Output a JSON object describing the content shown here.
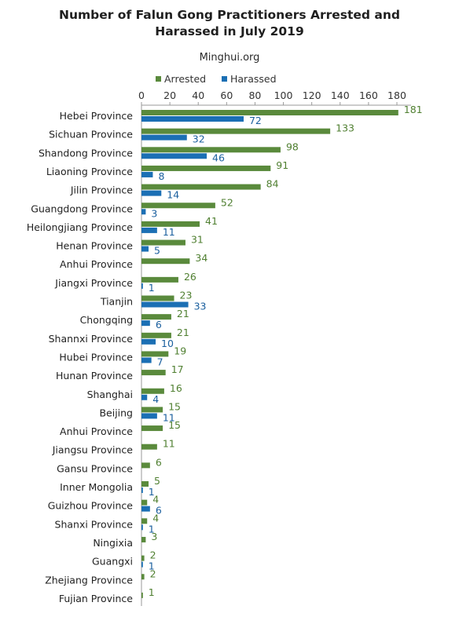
{
  "colors": {
    "arrested": "#5a8a3c",
    "harassed": "#1b6fb4",
    "arrested_label": "#4f7f30",
    "harassed_label": "#1a5f9e",
    "axis": "#9a9a9a"
  },
  "chart_data": {
    "type": "bar",
    "orientation": "horizontal",
    "title": "Number of Falun Gong Practitioners Arrested and Harassed in July 2019",
    "title_lines": [
      "Number of Falun Gong Practitioners Arrested and",
      "Harassed in July 2019"
    ],
    "subtitle": "Minghui.org",
    "xlim": [
      0,
      190
    ],
    "xticks": [
      0,
      20,
      40,
      60,
      80,
      100,
      120,
      140,
      160,
      180
    ],
    "x_axis_position": "top",
    "grid": false,
    "legend_position": "top",
    "categories": [
      "Hebei Province",
      "Sichuan Province",
      "Shandong Province",
      "Liaoning Province",
      "Jilin Province",
      "Guangdong Province",
      "Heilongjiang Province",
      "Henan Province",
      "Anhui Province",
      "Jiangxi Province",
      "Tianjin",
      "Chongqing",
      "Shannxi Province",
      "Hubei Province",
      "Hunan Province",
      "Shanghai",
      "Beijing",
      "Anhui Province",
      "Jiangsu Province",
      "Gansu Province",
      "Inner Mongolia",
      "Guizhou Province",
      "Shanxi Province",
      "Ningixia",
      "Guangxi",
      "Zhejiang Province",
      "Fujian Province"
    ],
    "series": [
      {
        "name": "Arrested",
        "values": [
          181,
          133,
          98,
          91,
          84,
          52,
          41,
          31,
          34,
          26,
          23,
          21,
          21,
          19,
          17,
          16,
          15,
          15,
          11,
          6,
          5,
          4,
          4,
          3,
          2,
          2,
          1
        ]
      },
      {
        "name": "Harassed",
        "values": [
          72,
          32,
          46,
          8,
          14,
          3,
          11,
          5,
          null,
          1,
          33,
          6,
          10,
          7,
          null,
          4,
          11,
          null,
          null,
          null,
          1,
          6,
          1,
          null,
          1,
          null,
          null
        ]
      }
    ]
  }
}
